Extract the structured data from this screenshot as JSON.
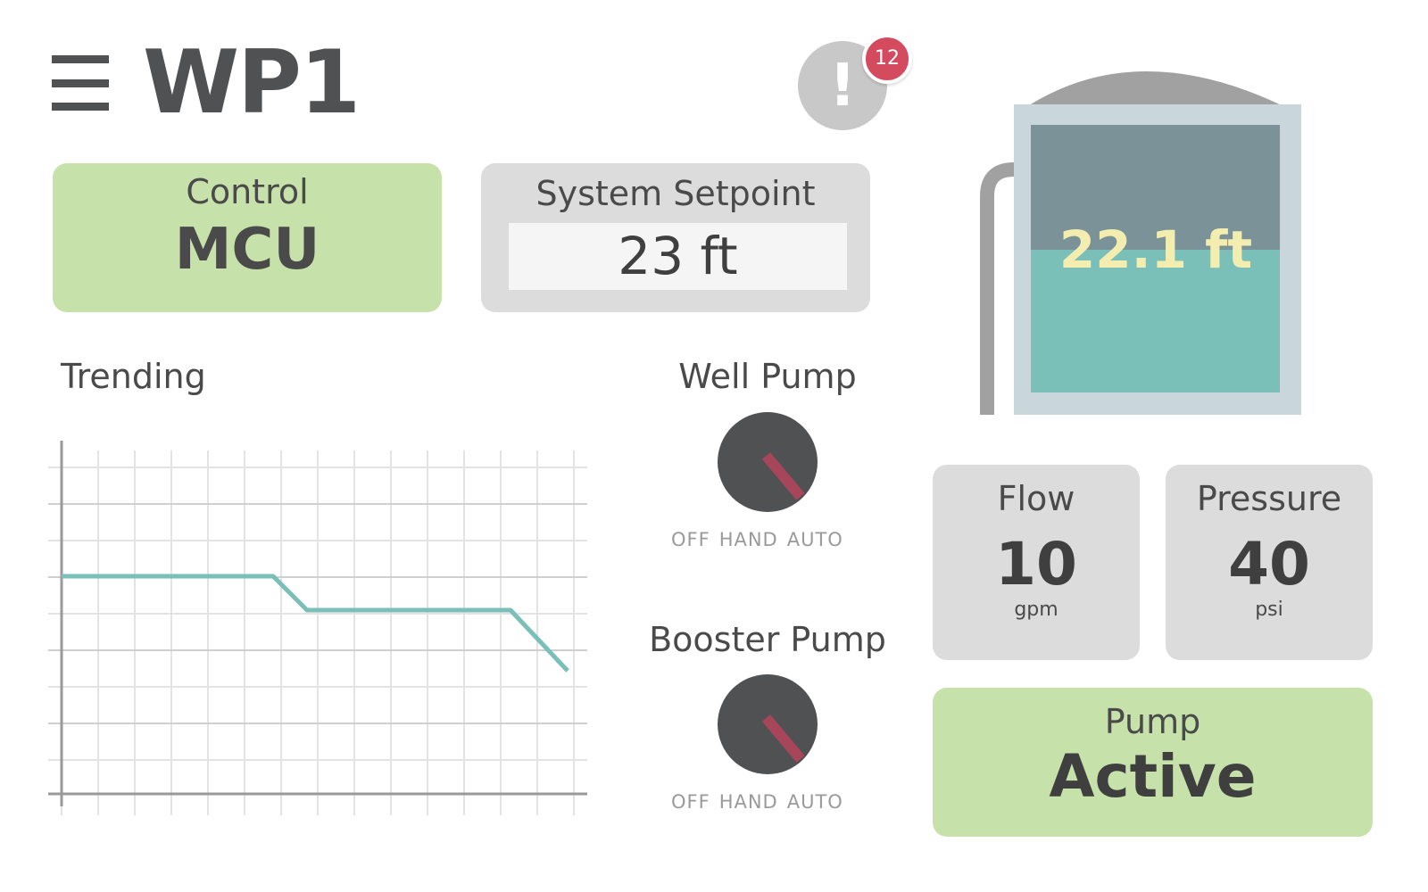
{
  "header": {
    "title": "WP1"
  },
  "alarms": {
    "count": "12",
    "glyph": "!"
  },
  "control": {
    "label": "Control",
    "value": "MCU"
  },
  "setpoint": {
    "label": "System Setpoint",
    "value": "23 ft"
  },
  "trending": {
    "label": "Trending",
    "line_color": "#7bbfb9"
  },
  "well_pump": {
    "label": "Well Pump",
    "positions": [
      "OFF",
      "HAND",
      "AUTO"
    ],
    "selected": "AUTO"
  },
  "booster_pump": {
    "label": "Booster Pump",
    "positions": [
      "OFF",
      "HAND",
      "AUTO"
    ],
    "selected": "AUTO"
  },
  "tank": {
    "level_text": "22.1 ft",
    "setpoint_ft": 23,
    "level_ft": 22.1,
    "water_color": "#7bbfb9"
  },
  "flow": {
    "label": "Flow",
    "value": "10",
    "unit": "gpm"
  },
  "pressure": {
    "label": "Pressure",
    "value": "40",
    "unit": "psi"
  },
  "pump_status": {
    "label": "Pump",
    "value": "Active"
  },
  "colors": {
    "green_card": "#c6e2aa",
    "gray_card": "#dcdcdc",
    "alarm_badge": "#d44a5e",
    "knob_pointer": "#a7465a"
  }
}
